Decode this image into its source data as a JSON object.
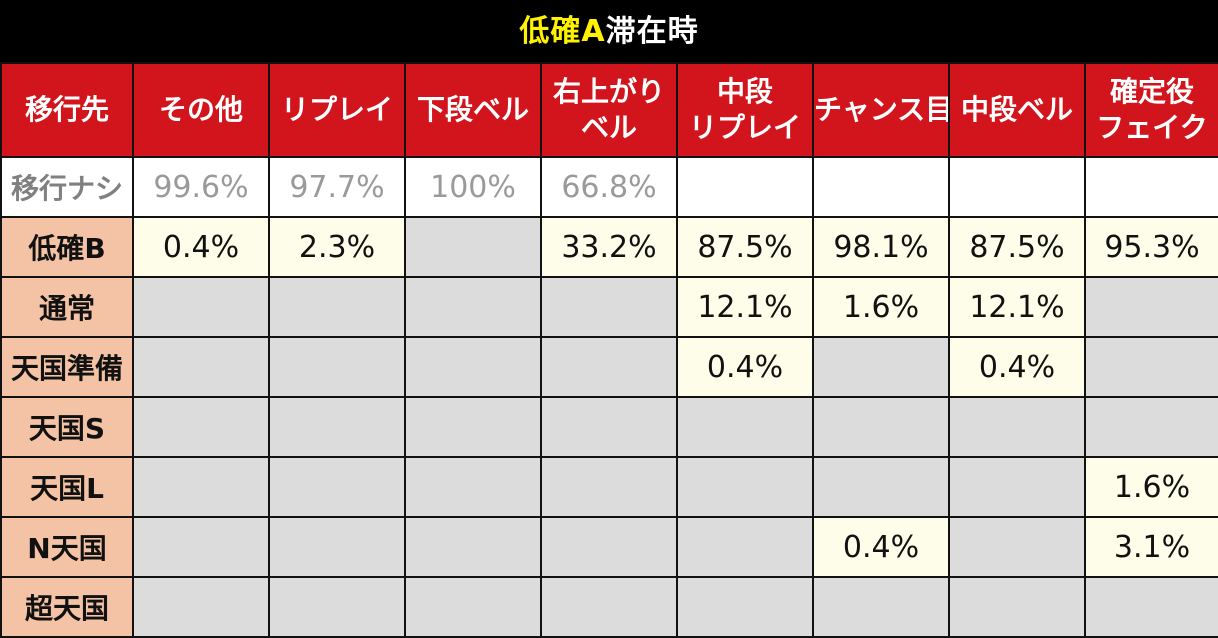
{
  "title": {
    "highlight": "低確A",
    "rest": "滞在時"
  },
  "header": {
    "row_label": "移行先",
    "columns": [
      {
        "lines": [
          "その他"
        ]
      },
      {
        "lines": [
          "リプレイ"
        ]
      },
      {
        "lines": [
          "下段ベル"
        ]
      },
      {
        "lines": [
          "右上がり",
          "ベル"
        ]
      },
      {
        "lines": [
          "中段",
          "リプレイ"
        ]
      },
      {
        "lines": [
          "チャンス目"
        ]
      },
      {
        "lines": [
          "中段ベル"
        ]
      },
      {
        "lines": [
          "確定役",
          "フェイク"
        ]
      }
    ]
  },
  "rows": [
    {
      "label": "移行ナシ",
      "cells": [
        "99.6%",
        "97.7%",
        "100%",
        "66.8%",
        "",
        "",
        "",
        ""
      ]
    },
    {
      "label": "低確B",
      "cells": [
        "0.4%",
        "2.3%",
        "",
        "33.2%",
        "87.5%",
        "98.1%",
        "87.5%",
        "95.3%"
      ]
    },
    {
      "label": "通常",
      "cells": [
        "",
        "",
        "",
        "",
        "12.1%",
        "1.6%",
        "12.1%",
        ""
      ]
    },
    {
      "label": "天国準備",
      "cells": [
        "",
        "",
        "",
        "",
        "0.4%",
        "",
        "0.4%",
        ""
      ]
    },
    {
      "label": "天国S",
      "cells": [
        "",
        "",
        "",
        "",
        "",
        "",
        "",
        ""
      ]
    },
    {
      "label": "天国L",
      "cells": [
        "",
        "",
        "",
        "",
        "",
        "",
        "",
        "1.6%"
      ]
    },
    {
      "label": "N天国",
      "cells": [
        "",
        "",
        "",
        "",
        "",
        "0.4%",
        "",
        "3.1%"
      ]
    },
    {
      "label": "超天国",
      "cells": [
        "",
        "",
        "",
        "",
        "",
        "",
        "",
        ""
      ]
    }
  ],
  "colors": {
    "header_red": "#d2141c",
    "title_yellow": "#fff200",
    "row_label_peach": "#f4c3a5",
    "value_cream": "#fdfde9",
    "empty_gray": "#dcdcdc"
  }
}
